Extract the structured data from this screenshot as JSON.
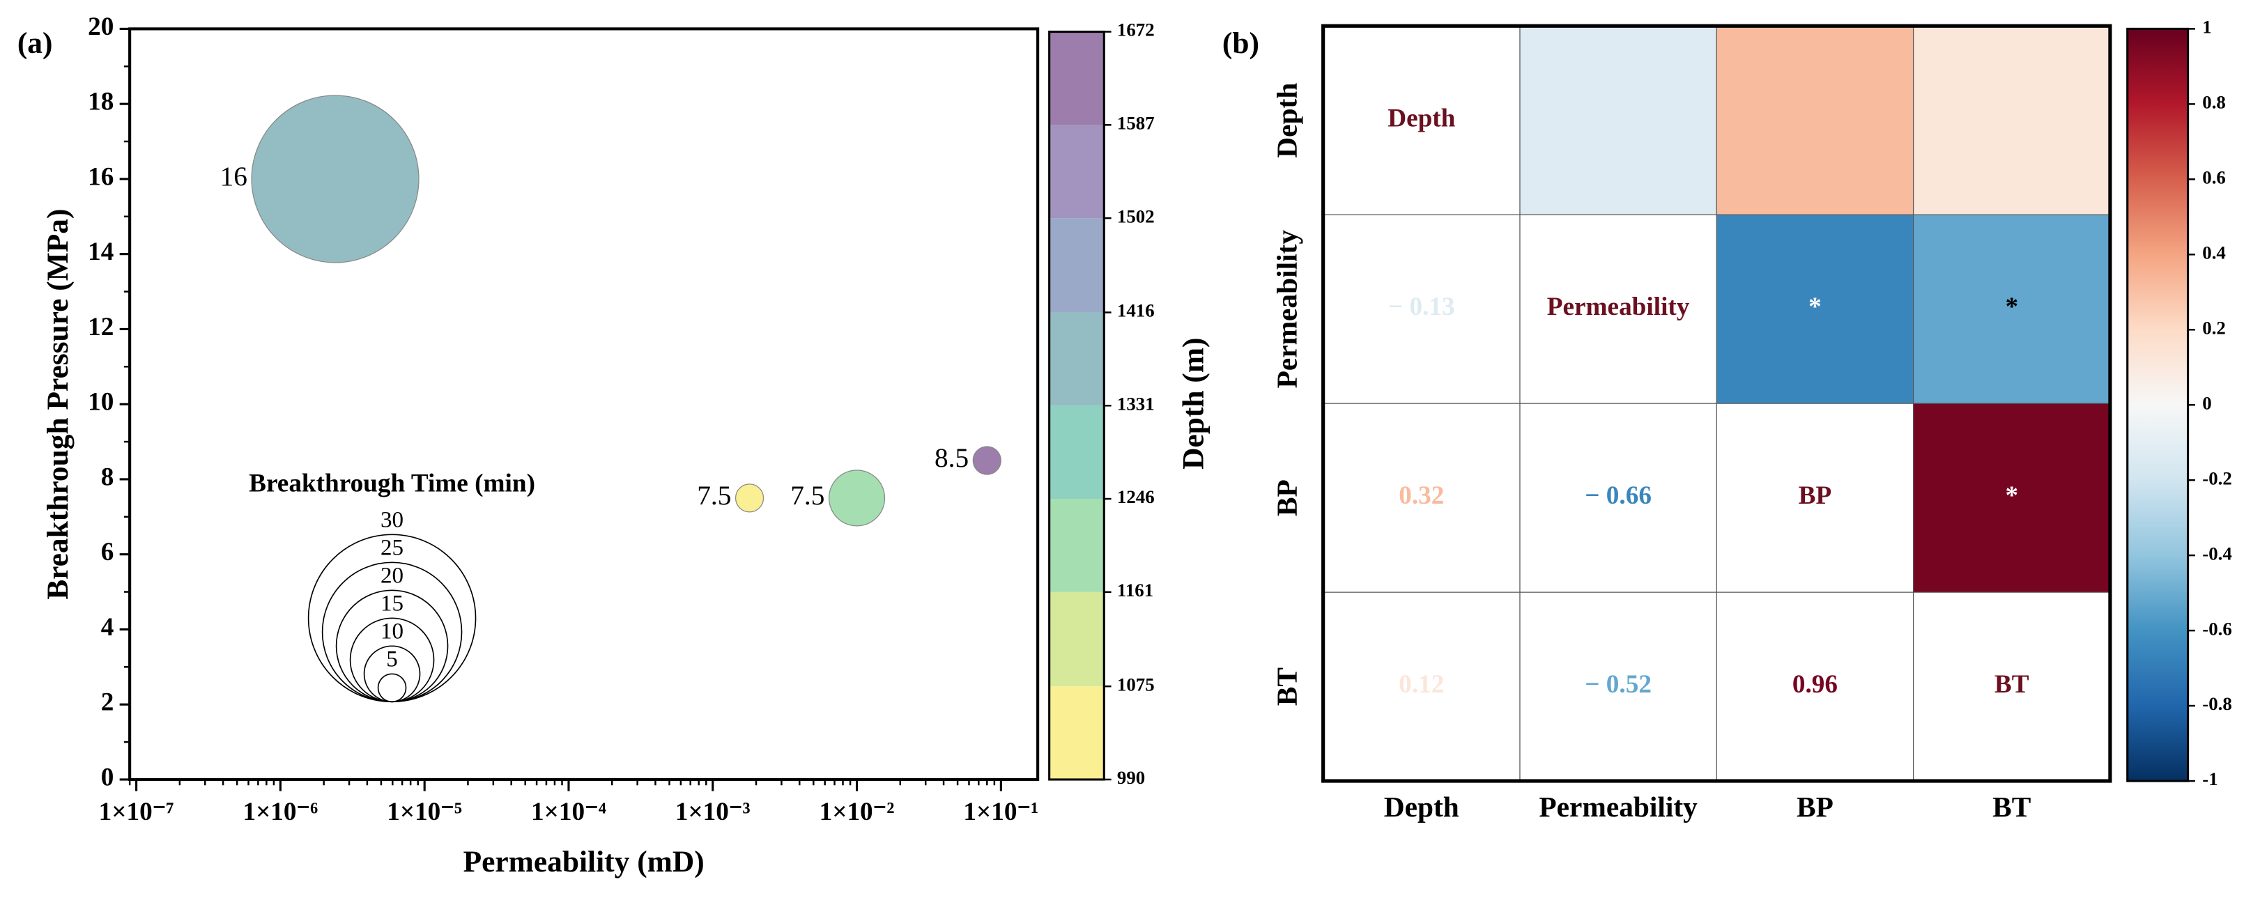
{
  "chart_data": [
    {
      "type": "scatter",
      "panel_label": "(a)",
      "x_label": "Permeability (mD)",
      "y_label": "Breakthrough Pressure (MPa)",
      "xscale": "log",
      "xlim": [
        9e-08,
        0.18
      ],
      "ylim": [
        0,
        20
      ],
      "xticks": [
        {
          "value": 1e-07,
          "label": "1×10⁻⁷"
        },
        {
          "value": 1e-06,
          "label": "1×10⁻⁶"
        },
        {
          "value": 1e-05,
          "label": "1×10⁻⁵"
        },
        {
          "value": 0.0001,
          "label": "1×10⁻⁴"
        },
        {
          "value": 0.001,
          "label": "1×10⁻³"
        },
        {
          "value": 0.01,
          "label": "1×10⁻²"
        },
        {
          "value": 0.1,
          "label": "1×10⁻¹"
        }
      ],
      "yticks": [
        0,
        2,
        4,
        6,
        8,
        10,
        12,
        14,
        16,
        18,
        20
      ],
      "x": [
        2.4e-06,
        0.0018,
        0.01,
        0.08
      ],
      "values": [
        16,
        7.5,
        7.5,
        8.5
      ],
      "sizes": [
        30,
        5,
        10,
        5
      ],
      "depth": [
        1380,
        1030,
        1200,
        1640
      ],
      "colorbar": {
        "label": "Depth (m)",
        "ticks": [
          990,
          1075,
          1161,
          1246,
          1331,
          1416,
          1502,
          1587,
          1672
        ],
        "colors": [
          "#fbef94",
          "#d6e89a",
          "#a5deb0",
          "#8fd1c0",
          "#93bdc3",
          "#9aa9c8",
          "#a293bf",
          "#9c7dab"
        ]
      },
      "size_legend": {
        "title": "Breakthrough Time (min)",
        "values": [
          5,
          10,
          15,
          20,
          25,
          30
        ]
      }
    },
    {
      "type": "heatmap",
      "panel_label": "(b)",
      "categories": [
        "Depth",
        "Permeability",
        "BP",
        "BT"
      ],
      "values": [
        [
          null,
          -0.13,
          0.32,
          0.12
        ],
        [
          -0.13,
          null,
          -0.66,
          -0.52
        ],
        [
          0.32,
          -0.66,
          null,
          0.96
        ],
        [
          0.12,
          -0.52,
          0.96,
          null
        ]
      ],
      "value_labels": [
        [
          null,
          null,
          null,
          null
        ],
        [
          "− 0.13",
          null,
          null,
          null
        ],
        [
          null,
          "− 0.66",
          null,
          null
        ],
        [
          null,
          "− 0.52",
          null,
          null
        ]
      ],
      "significant": [
        [
          false,
          false,
          false,
          false
        ],
        [
          false,
          false,
          true,
          true
        ],
        [
          false,
          true,
          false,
          true
        ],
        [
          false,
          true,
          true,
          false
        ]
      ],
      "significance_label": "*",
      "clim": [
        -1,
        1
      ],
      "cticks": [
        -1,
        -0.8,
        -0.6,
        -0.4,
        -0.2,
        0,
        0.2,
        0.4,
        0.6,
        0.8,
        1
      ],
      "colorscale": [
        "#053061",
        "#2166ac",
        "#4393c3",
        "#92c5de",
        "#d1e5f0",
        "#f7f7f7",
        "#fddbc7",
        "#f4a582",
        "#d6604d",
        "#b2182b",
        "#67001f"
      ]
    }
  ]
}
